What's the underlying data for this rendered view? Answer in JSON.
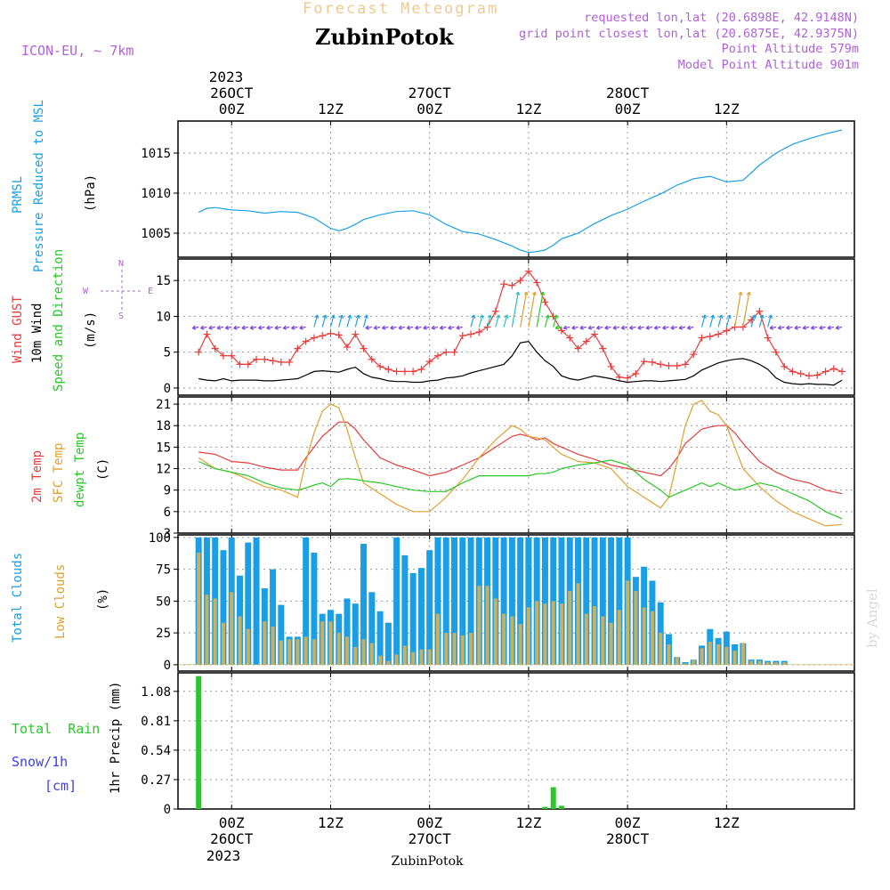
{
  "header": {
    "title": "Forecast Meteogram",
    "location": "ZubinPotok",
    "model": "ICON-EU, ~ 7km",
    "requested": "requested lon,lat (20.6898E, 42.9148N)",
    "closest": "grid point closest lon,lat (20.6875E, 42.9375N)",
    "point_alt": "Point Altitude 579m",
    "model_alt": "Model Point Altitude 901m"
  },
  "footer": {
    "location": "ZubinPotok",
    "credit": "by Angel"
  },
  "top_axis": {
    "year": "2023",
    "labels": [
      {
        "h": 0,
        "l1": "26OCT",
        "l2": "00Z"
      },
      {
        "h": 12,
        "l1": "",
        "l2": "12Z"
      },
      {
        "h": 24,
        "l1": "27OCT",
        "l2": "00Z"
      },
      {
        "h": 36,
        "l1": "",
        "l2": "12Z"
      },
      {
        "h": 48,
        "l1": "28OCT",
        "l2": "00Z"
      },
      {
        "h": 60,
        "l1": "",
        "l2": "12Z"
      }
    ]
  },
  "bottom_axis": {
    "year": "2023",
    "labels": [
      {
        "h": 0,
        "l1": "00Z",
        "l2": "26OCT"
      },
      {
        "h": 12,
        "l1": "12Z",
        "l2": ""
      },
      {
        "h": 24,
        "l1": "00Z",
        "l2": "27OCT"
      },
      {
        "h": 36,
        "l1": "12Z",
        "l2": ""
      },
      {
        "h": 48,
        "l1": "00Z",
        "l2": "28OCT"
      },
      {
        "h": 60,
        "l1": "12Z",
        "l2": ""
      }
    ]
  },
  "panels": {
    "pressure": {
      "label1": "PRMSL",
      "label2": "Pressure Reduced to MSL",
      "unit": "(hPa)"
    },
    "wind": {
      "label_gust": "Wind GUST",
      "label_10m": "10m Wind",
      "label_dir": "Speed and Direction",
      "unit": "(m/s)",
      "compass_n": "N",
      "compass_s": "S",
      "compass_w": "W",
      "compass_e": "E"
    },
    "temp": {
      "label1": "2m Temp",
      "label2": "SFC Temp",
      "label3": "dewpt Temp",
      "unit": "(C)"
    },
    "clouds": {
      "label1": "Total Clouds",
      "label2": "Low Clouds",
      "unit": "(%)"
    },
    "precip": {
      "label_rain": "Total  Rain",
      "label_snow": "Snow/1h",
      "label_cm": "[cm]",
      "unit": "1hr Precip (mm)"
    }
  },
  "colors": {
    "blue": "#1a9fe6",
    "red": "#e83c3c",
    "orange": "#e0a030",
    "green": "#28c828",
    "black": "#000000",
    "purple": "#b060d8",
    "title": "#f0c890"
  },
  "chart_data": [
    {
      "type": "line",
      "id": "pressure",
      "ylim": [
        1002,
        1019
      ],
      "yticks": [
        1005,
        1010,
        1015
      ],
      "x_hours": [
        -4,
        -3,
        -2,
        0,
        2,
        4,
        6,
        8,
        10,
        12,
        13,
        14,
        15,
        16,
        18,
        20,
        22,
        24,
        26,
        28,
        30,
        32,
        34,
        35,
        36,
        37,
        38,
        39,
        40,
        42,
        44,
        46,
        48,
        50,
        52,
        54,
        56,
        58,
        60,
        62,
        64,
        66,
        68,
        70,
        72,
        74
      ],
      "series": [
        {
          "name": "PRMSL",
          "values": [
            1007.6,
            1008.1,
            1008.2,
            1007.9,
            1007.8,
            1007.5,
            1007.7,
            1007.6,
            1006.9,
            1005.6,
            1005.3,
            1005.6,
            1006.1,
            1006.7,
            1007.3,
            1007.7,
            1007.8,
            1007.3,
            1006.1,
            1005.2,
            1004.9,
            1004.2,
            1003.4,
            1002.9,
            1002.6,
            1002.7,
            1002.9,
            1003.5,
            1004.3,
            1005.0,
            1006.2,
            1007.2,
            1008.0,
            1009.0,
            1009.9,
            1011.0,
            1011.8,
            1012.1,
            1011.4,
            1011.6,
            1013.5,
            1015.0,
            1016.1,
            1016.8,
            1017.4,
            1017.9
          ]
        }
      ]
    },
    {
      "type": "line",
      "id": "wind",
      "ylim": [
        -1,
        18
      ],
      "yticks": [
        0,
        5,
        10,
        15
      ],
      "x_hours": [
        -4,
        -3,
        -2,
        -1,
        0,
        1,
        2,
        3,
        4,
        5,
        6,
        7,
        8,
        9,
        10,
        11,
        12,
        13,
        14,
        15,
        16,
        17,
        18,
        19,
        20,
        21,
        22,
        23,
        24,
        25,
        26,
        27,
        28,
        29,
        30,
        31,
        32,
        33,
        34,
        35,
        36,
        37,
        38,
        39,
        40,
        41,
        42,
        43,
        44,
        45,
        46,
        47,
        48,
        49,
        50,
        51,
        52,
        53,
        54,
        55,
        56,
        57,
        58,
        59,
        60,
        61,
        62,
        63,
        64,
        65,
        66,
        67,
        68,
        69,
        70,
        71,
        72,
        73,
        74
      ],
      "series": [
        {
          "name": "Wind GUST",
          "values": [
            5.0,
            7.5,
            5.5,
            4.5,
            4.5,
            3.3,
            3.3,
            4.0,
            4.0,
            3.8,
            3.6,
            3.6,
            5.5,
            6.5,
            7.0,
            7.3,
            7.6,
            7.4,
            5.7,
            7.5,
            5.5,
            4.0,
            3.0,
            2.6,
            2.3,
            2.3,
            2.3,
            2.6,
            3.7,
            4.5,
            5.0,
            5.0,
            7.3,
            7.5,
            7.8,
            8.5,
            10.7,
            14.5,
            14.3,
            15.0,
            16.3,
            14.7,
            12.0,
            10.0,
            8.0,
            7.0,
            5.5,
            6.5,
            7.5,
            5.5,
            3.0,
            1.5,
            1.4,
            2.0,
            3.7,
            3.6,
            3.3,
            3.1,
            3.1,
            3.3,
            4.7,
            7.0,
            7.2,
            7.5,
            8.0,
            8.5,
            8.5,
            9.5,
            10.7,
            7.0,
            5.0,
            3.0,
            2.3,
            2.0,
            1.7,
            1.8,
            2.3,
            2.7,
            2.3
          ]
        },
        {
          "name": "10m Wind",
          "values": [
            1.3,
            1.1,
            1.0,
            1.3,
            1.0,
            1.1,
            1.1,
            1.1,
            1.0,
            1.0,
            1.1,
            1.2,
            1.3,
            1.8,
            2.3,
            2.4,
            2.3,
            2.2,
            2.6,
            2.9,
            2.0,
            1.5,
            1.3,
            1.0,
            0.9,
            0.9,
            0.8,
            0.8,
            1.0,
            1.1,
            1.4,
            1.5,
            1.7,
            2.1,
            2.4,
            2.7,
            3.0,
            3.3,
            4.5,
            6.3,
            6.5,
            5.0,
            3.8,
            3.0,
            1.7,
            1.3,
            1.1,
            1.4,
            1.7,
            1.5,
            1.3,
            1.0,
            0.8,
            0.9,
            1.0,
            1.0,
            0.9,
            1.0,
            1.1,
            1.2,
            1.7,
            2.5,
            3.0,
            3.5,
            3.8,
            4.0,
            4.1,
            3.8,
            3.3,
            2.6,
            1.4,
            0.8,
            0.6,
            0.5,
            0.6,
            0.5,
            0.5,
            0.4,
            1.1
          ]
        }
      ],
      "arrows": {
        "x_hours": [
          -4,
          -3,
          -2,
          -1,
          0,
          1,
          2,
          3,
          4,
          5,
          6,
          7,
          8,
          9,
          10,
          11,
          12,
          13,
          14,
          15,
          16,
          17,
          18,
          19,
          20,
          21,
          22,
          23,
          24,
          25,
          26,
          27,
          28,
          29,
          30,
          31,
          32,
          33,
          34,
          35,
          36,
          37,
          38,
          39,
          40,
          41,
          42,
          43,
          44,
          45,
          46,
          47,
          48,
          49,
          50,
          51,
          52,
          53,
          54,
          55,
          56,
          57,
          58,
          59,
          60,
          61,
          62,
          63,
          64,
          65,
          66,
          67,
          68,
          69,
          70,
          71,
          72,
          73,
          74
        ],
        "y": 8.5,
        "note": "wind direction barbs"
      }
    },
    {
      "type": "line",
      "id": "temp",
      "ylim": [
        3,
        22
      ],
      "yticks": [
        3,
        6,
        9,
        12,
        15,
        18,
        21
      ],
      "x_hours": [
        -4,
        -2,
        0,
        2,
        4,
        6,
        8,
        9,
        10,
        11,
        12,
        13,
        14,
        15,
        16,
        18,
        20,
        22,
        24,
        26,
        28,
        30,
        32,
        34,
        35,
        36,
        37,
        38,
        39,
        40,
        42,
        44,
        46,
        48,
        50,
        52,
        53,
        54,
        55,
        56,
        57,
        58,
        59,
        60,
        61,
        62,
        64,
        66,
        68,
        70,
        72,
        74
      ],
      "series": [
        {
          "name": "2m Temp",
          "values": [
            14.3,
            14.0,
            13.0,
            12.8,
            12.2,
            11.8,
            11.8,
            13.5,
            15.0,
            16.5,
            17.5,
            18.5,
            18.5,
            17.5,
            16.0,
            13.5,
            12.5,
            11.8,
            11.0,
            11.5,
            12.5,
            13.5,
            15.0,
            16.5,
            16.8,
            16.5,
            16.0,
            16.3,
            15.5,
            15.0,
            14.0,
            13.3,
            12.5,
            12.0,
            11.5,
            11.0,
            12.0,
            13.5,
            15.5,
            16.5,
            17.5,
            17.8,
            18.0,
            18.0,
            17.0,
            15.5,
            13.0,
            11.5,
            10.5,
            10.0,
            9.0,
            8.5
          ]
        },
        {
          "name": "SFC Temp",
          "values": [
            13.5,
            12.0,
            11.5,
            10.5,
            9.5,
            9.0,
            8.0,
            13.0,
            17.0,
            20.0,
            21.0,
            20.5,
            17.5,
            13.5,
            10.0,
            8.5,
            7.0,
            6.0,
            6.0,
            8.0,
            10.5,
            13.5,
            16.0,
            18.0,
            17.5,
            16.5,
            16.3,
            16.0,
            15.0,
            14.0,
            13.0,
            12.8,
            12.0,
            9.5,
            8.0,
            6.5,
            8.0,
            13.0,
            18.0,
            21.0,
            21.5,
            20.0,
            19.5,
            18.0,
            15.0,
            12.0,
            9.5,
            7.5,
            6.0,
            5.0,
            4.0,
            4.2
          ]
        },
        {
          "name": "dewpt Temp",
          "values": [
            13.0,
            12.0,
            11.5,
            11.0,
            10.0,
            9.3,
            9.0,
            9.3,
            9.7,
            10.0,
            9.5,
            10.5,
            10.6,
            10.5,
            10.3,
            10.0,
            9.5,
            9.0,
            8.8,
            8.8,
            10.0,
            11.0,
            11.0,
            11.0,
            11.0,
            11.0,
            11.3,
            11.3,
            11.5,
            12.0,
            12.5,
            12.8,
            13.2,
            12.5,
            10.5,
            9.0,
            8.0,
            8.5,
            9.0,
            9.5,
            10.0,
            9.5,
            10.0,
            9.5,
            9.0,
            9.2,
            10.0,
            9.5,
            8.5,
            7.5,
            6.0,
            5.0
          ]
        }
      ]
    },
    {
      "type": "bar",
      "id": "clouds",
      "ylim": [
        -5,
        102
      ],
      "yticks": [
        0,
        25,
        50,
        75,
        100
      ],
      "x_hours": [
        -4,
        -3,
        -2,
        -1,
        0,
        1,
        2,
        3,
        4,
        5,
        6,
        7,
        8,
        9,
        10,
        11,
        12,
        13,
        14,
        15,
        16,
        17,
        18,
        19,
        20,
        21,
        22,
        23,
        24,
        25,
        26,
        27,
        28,
        29,
        30,
        31,
        32,
        33,
        34,
        35,
        36,
        37,
        38,
        39,
        40,
        41,
        42,
        43,
        44,
        45,
        46,
        47,
        48,
        49,
        50,
        51,
        52,
        53,
        54,
        55,
        56,
        57,
        58,
        59,
        60,
        61,
        62,
        63,
        64,
        65,
        66,
        67,
        68,
        69,
        70,
        71,
        72,
        73,
        74
      ],
      "series": [
        {
          "name": "Total Clouds",
          "values": [
            100,
            100,
            100,
            90,
            100,
            70,
            96,
            100,
            60,
            75,
            47,
            22,
            22,
            100,
            88,
            40,
            43,
            40,
            52,
            48,
            95,
            57,
            42,
            33,
            100,
            86,
            72,
            76,
            90,
            100,
            100,
            100,
            100,
            100,
            100,
            100,
            100,
            100,
            100,
            100,
            100,
            100,
            100,
            100,
            100,
            100,
            100,
            100,
            100,
            100,
            100,
            100,
            100,
            69,
            77,
            66,
            49,
            24,
            6,
            2,
            4,
            15,
            28,
            21,
            26,
            16,
            17,
            4,
            4,
            3,
            3,
            3,
            0,
            0,
            0
          ]
        },
        {
          "name": "Low Clouds",
          "values": [
            88,
            55,
            52,
            33,
            57,
            38,
            28,
            0,
            34,
            30,
            19,
            20,
            20,
            22,
            20,
            34,
            34,
            25,
            22,
            14,
            20,
            17,
            7,
            3,
            8,
            15,
            10,
            12,
            12,
            40,
            25,
            25,
            23,
            25,
            62,
            62,
            52,
            40,
            38,
            32,
            45,
            50,
            48,
            50,
            48,
            58,
            64,
            40,
            46,
            38,
            33,
            43,
            66,
            58,
            45,
            42,
            25,
            16,
            6,
            1,
            4,
            13,
            18,
            16,
            14,
            11,
            17,
            3,
            3,
            2,
            2,
            2,
            0,
            0,
            0
          ]
        }
      ]
    },
    {
      "type": "bar",
      "id": "precip",
      "ylim": [
        0,
        1.25
      ],
      "yticks": [
        0,
        0.27,
        0.54,
        0.81,
        1.08
      ],
      "x_hours": [
        -4,
        38,
        39,
        40
      ],
      "series": [
        {
          "name": "Total  Rain",
          "values": [
            1.22,
            0.02,
            0.2,
            0.03
          ]
        }
      ]
    }
  ]
}
